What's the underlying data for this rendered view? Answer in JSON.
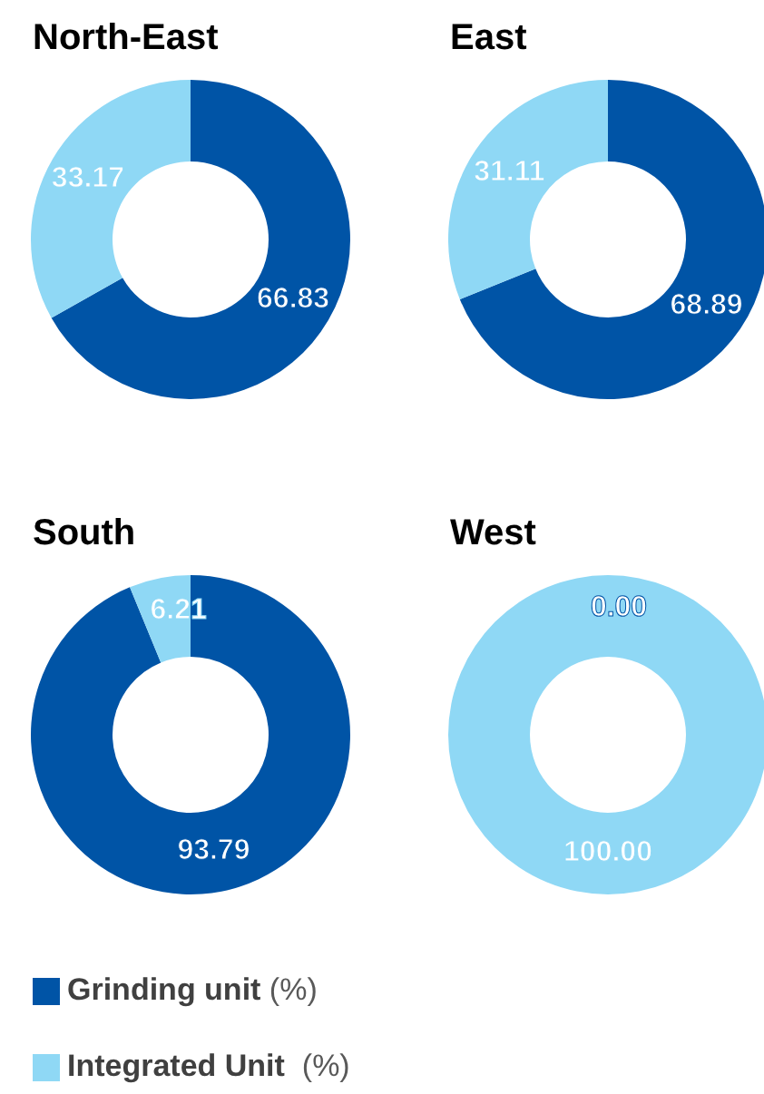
{
  "chart_data": [
    {
      "type": "donut",
      "title": "North-East",
      "categories": [
        "Grinding unit (%)",
        "Integrated Unit  (%)"
      ],
      "values": [
        66.83,
        33.17
      ],
      "colors": [
        "#0054a6",
        "#8fd8f5"
      ],
      "value_labels": [
        "66.83",
        "33.17"
      ],
      "legend": "bottom"
    },
    {
      "type": "donut",
      "title": "East",
      "categories": [
        null,
        null
      ],
      "values": [
        68.89,
        31.11
      ],
      "colors": [
        "#0054a6",
        "#8fd8f5"
      ],
      "value_labels": [
        "68.89",
        "31.11"
      ]
    },
    {
      "type": "donut",
      "title": "South",
      "categories": [
        null,
        null
      ],
      "values": [
        93.79,
        6.21
      ],
      "colors": [
        "#0054a6",
        "#8fd8f5"
      ],
      "value_labels": [
        "93.79",
        "6.21"
      ]
    },
    {
      "type": "donut",
      "title": "West",
      "categories": [
        null,
        null
      ],
      "values": [
        0.0,
        100.0
      ],
      "colors": [
        "#0054a6",
        "#8fd8f5"
      ],
      "value_labels": [
        "0.00",
        "100.00"
      ]
    }
  ]
}
